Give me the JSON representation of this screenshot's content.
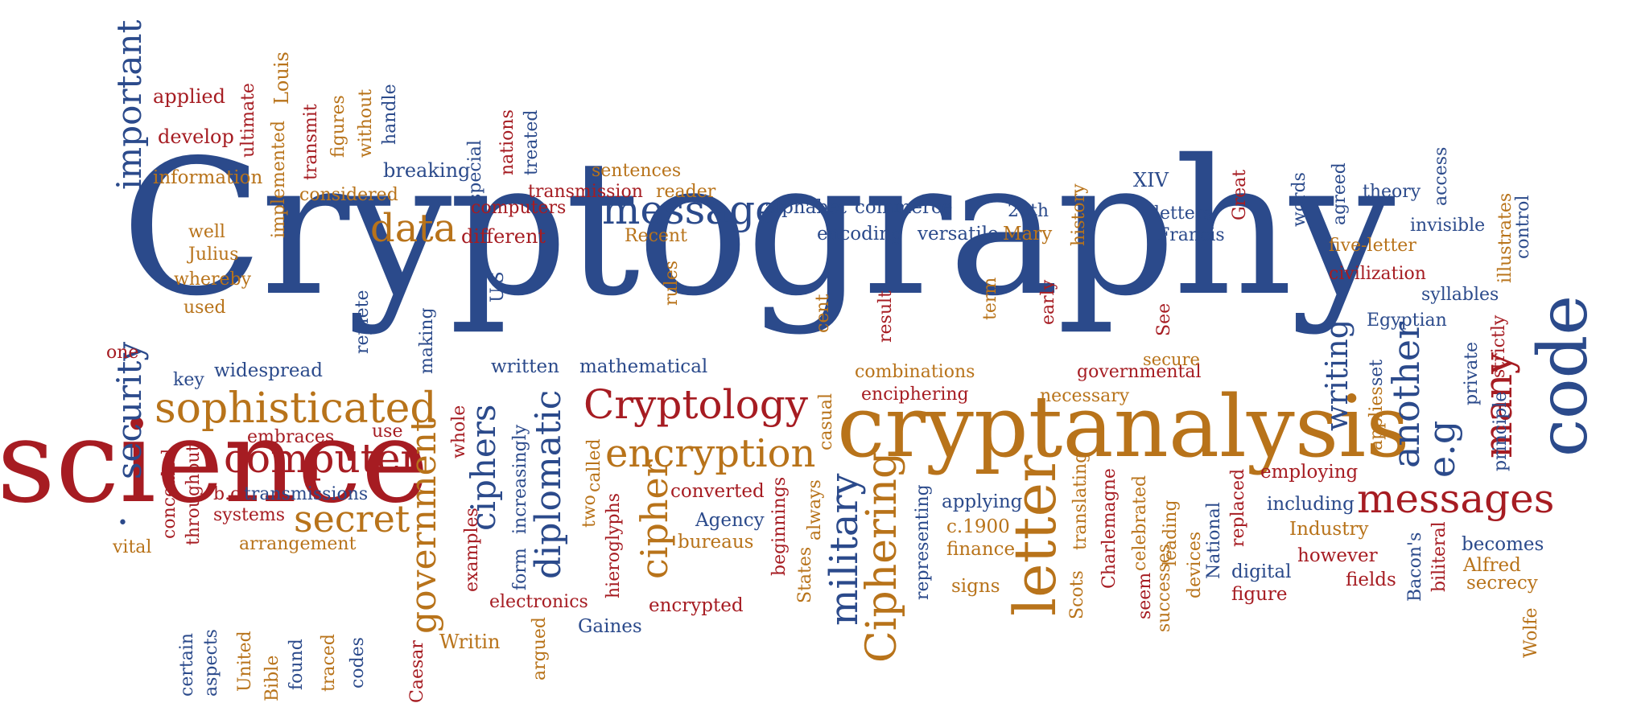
{
  "colors": {
    "blue": "#2b4a8b",
    "red": "#a61c22",
    "orange": "#b8731a"
  },
  "words": {
    "cryptography": "Cryptography",
    "science": "science",
    "cryptanalysis": "cryptanalysis",
    "code": "code",
    "sophisticated": "sophisticated",
    "computer": "computer",
    "cryptology": "Cryptology",
    "encryption": "encryption",
    "messages": "messages",
    "message": "message",
    "data": "data",
    "secret": "secret",
    "government": "government",
    "important": "important",
    "security": "security",
    "ciphers": "ciphers",
    "diplomatic": "diplomatic",
    "cipher": "cipher",
    "military": "military",
    "ciphering": "Ciphering",
    "letter": "letter",
    "another": "another",
    "eg": "e.g",
    "many": "many",
    "writing": "writing",
    "applied": "applied",
    "develop": "develop",
    "information": "information",
    "considered": "considered",
    "breaking": "breaking",
    "sentences": "sentences",
    "transmission": "transmission",
    "reader": "reader",
    "computers": "computers",
    "different": "different",
    "recent": "Recent",
    "alphabet": "alphabet",
    "commerce": "commerce",
    "encoding": "encoding",
    "versatile": "versatile",
    "mary": "Mary",
    "twentieth": "20th",
    "xiv": "XIV",
    "letters": "letters",
    "francis": "Francis",
    "theory": "theory",
    "invisible": "invisible",
    "five_letter": "five-letter",
    "civilization": "civilization",
    "syllables": "syllables",
    "egyptian": "Egyptian",
    "well": "well",
    "julius": "Julius",
    "whereby": "whereby",
    "used": "used",
    "one": "one",
    "key": "key",
    "widespread": "widespread",
    "written": "written",
    "mathematical": "mathematical",
    "combinations": "combinations",
    "enciphering": "enciphering",
    "governmental": "governmental",
    "secure": "secure",
    "necessary": "necessary",
    "embraces": "embraces",
    "use": "use",
    "bc": "b.c",
    "transmissions": "transmissions",
    "systems": "systems",
    "arrangement": "arrangement",
    "vital": "vital",
    "converted": "converted",
    "agency": "Agency",
    "bureaus": "bureaus",
    "electronics": "electronics",
    "gaines": "Gaines",
    "encrypted": "encrypted",
    "writin": "Writin",
    "applying": "applying",
    "c1900": "c.1900",
    "finance": "finance",
    "signs": "signs",
    "employing": "employing",
    "including": "including",
    "industry": "Industry",
    "however": "however",
    "fields": "fields",
    "digital": "digital",
    "figure": "figure",
    "becomes": "becomes",
    "alfred": "Alfred",
    "secrecy": "secrecy",
    "ultimate": "ultimate",
    "louis": "Louis",
    "implemented": "implemented",
    "transmit": "transmit",
    "figures": "figures",
    "without": "without",
    "handle": "handle",
    "special": "special",
    "nations": "nations",
    "treated": "treated",
    "replete": "replete",
    "making": "making",
    "us": "U.S",
    "rules": "rules",
    "cent": "cent",
    "result": "result",
    "term": "term",
    "early": "early",
    "see": "See",
    "history": "history",
    "great": "Great",
    "words": "words",
    "agreed": "agreed",
    "access": "access",
    "control": "control",
    "illustrates": "illustrates",
    "strictly": "strictly",
    "private": "private",
    "principle": "principle",
    "set": "set",
    "applies": "applies",
    "concealed": "concealed",
    "throughout": "throughout",
    "whole": "whole",
    "examples": "examples",
    "increasingly": "increasingly",
    "form": "form",
    "two": "two",
    "called": "called",
    "hieroglyphs": "hieroglyphs",
    "argued": "argued",
    "casual": "casual",
    "beginnings": "beginnings",
    "states": "States",
    "always": "always",
    "representing": "representing",
    "charlemagne": "Charlemagne",
    "scots": "Scots",
    "translating": "translating",
    "celebrated": "celebrated",
    "seem": "seem",
    "successes": "successes",
    "leading": "leading",
    "devices": "devices",
    "national": "National",
    "replaced": "replaced",
    "bacons": "Bacon's",
    "biliteral": "biliteral",
    "wolfe": "Wolfe",
    "certain": "certain",
    "aspects": "aspects",
    "united": "United",
    "bible": "Bible",
    "found": "found",
    "traced": "traced",
    "codes": "codes",
    "caesar": "Caesar"
  }
}
